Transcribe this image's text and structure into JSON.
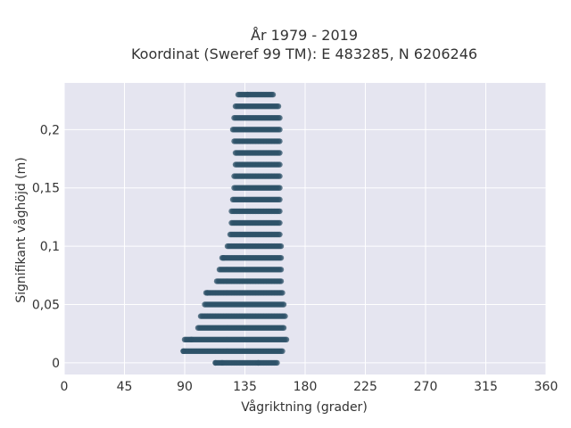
{
  "chart_data": {
    "type": "scatter",
    "title_lines": [
      "År 1979 - 2019",
      "Koordinat (Sweref 99 TM): E 483285, N 6206246"
    ],
    "xlabel": "Vågriktning (grader)",
    "ylabel": "Signifikant våghöjd (m)",
    "xlim": [
      0,
      360
    ],
    "ylim": [
      -0.01,
      0.24
    ],
    "x_ticks": [
      0,
      45,
      90,
      135,
      180,
      225,
      270,
      315,
      360
    ],
    "y_ticks": [
      0,
      0.05,
      0.1,
      0.15,
      0.2
    ],
    "x_tick_labels": [
      "0",
      "45",
      "90",
      "135",
      "180",
      "225",
      "270",
      "315",
      "360"
    ],
    "y_tick_labels": [
      "0",
      "0,05",
      "0,1",
      "0,15",
      "0,2"
    ],
    "grid": true,
    "marker_color": "#2e5168",
    "background_color": "#e5e5f0",
    "rows": [
      {
        "y": 0.0,
        "x_min": 113,
        "x_max": 159
      },
      {
        "y": 0.01,
        "x_min": 89,
        "x_max": 163
      },
      {
        "y": 0.02,
        "x_min": 90,
        "x_max": 166
      },
      {
        "y": 0.03,
        "x_min": 100,
        "x_max": 164
      },
      {
        "y": 0.04,
        "x_min": 102,
        "x_max": 165
      },
      {
        "y": 0.05,
        "x_min": 105,
        "x_max": 164
      },
      {
        "y": 0.06,
        "x_min": 106,
        "x_max": 163
      },
      {
        "y": 0.07,
        "x_min": 114,
        "x_max": 162
      },
      {
        "y": 0.08,
        "x_min": 116,
        "x_max": 162
      },
      {
        "y": 0.09,
        "x_min": 118,
        "x_max": 162
      },
      {
        "y": 0.1,
        "x_min": 122,
        "x_max": 162
      },
      {
        "y": 0.11,
        "x_min": 124,
        "x_max": 161
      },
      {
        "y": 0.12,
        "x_min": 125,
        "x_max": 161
      },
      {
        "y": 0.13,
        "x_min": 125,
        "x_max": 161
      },
      {
        "y": 0.14,
        "x_min": 126,
        "x_max": 161
      },
      {
        "y": 0.15,
        "x_min": 127,
        "x_max": 161
      },
      {
        "y": 0.16,
        "x_min": 127,
        "x_max": 161
      },
      {
        "y": 0.17,
        "x_min": 128,
        "x_max": 161
      },
      {
        "y": 0.18,
        "x_min": 128,
        "x_max": 161
      },
      {
        "y": 0.19,
        "x_min": 127,
        "x_max": 161
      },
      {
        "y": 0.2,
        "x_min": 126,
        "x_max": 161
      },
      {
        "y": 0.21,
        "x_min": 127,
        "x_max": 161
      },
      {
        "y": 0.22,
        "x_min": 128,
        "x_max": 160
      },
      {
        "y": 0.23,
        "x_min": 130,
        "x_max": 156
      }
    ],
    "outliers": [
      {
        "x": 89,
        "y": 0.01
      },
      {
        "x": 95,
        "y": 0.02
      },
      {
        "x": 107,
        "y": 0.06
      },
      {
        "x": 119,
        "y": 0.09
      },
      {
        "x": 137,
        "y": 0.23
      },
      {
        "x": 113,
        "y": 0.0
      },
      {
        "x": 118,
        "y": 0.0
      },
      {
        "x": 145,
        "y": 0.0
      }
    ]
  }
}
